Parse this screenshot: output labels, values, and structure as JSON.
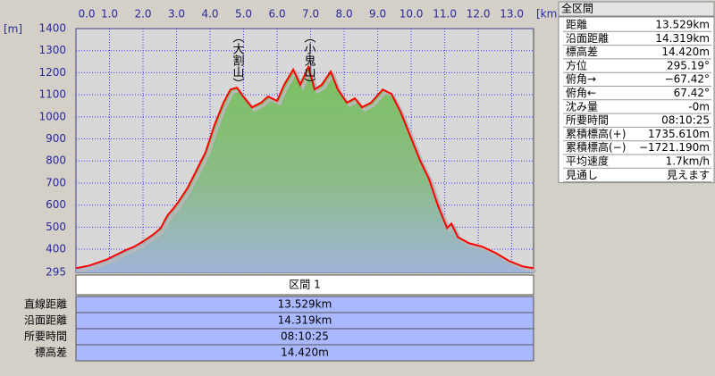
{
  "chart_data": {
    "type": "area",
    "x_unit": "[km]",
    "y_unit": "[m]",
    "x": [
      0,
      0.4,
      0.93,
      1.47,
      1.73,
      2.0,
      2.32,
      2.53,
      2.67,
      2.75,
      2.93,
      3.07,
      3.33,
      3.6,
      3.87,
      4.13,
      4.4,
      4.61,
      4.8,
      4.99,
      5.25,
      5.52,
      5.73,
      6.0,
      6.21,
      6.48,
      6.69,
      6.93,
      7.12,
      7.33,
      7.6,
      7.81,
      8.08,
      8.32,
      8.53,
      8.8,
      9.15,
      9.41,
      9.68,
      9.95,
      10.27,
      10.53,
      10.8,
      11.07,
      11.2,
      11.39,
      11.73,
      12.13,
      12.53,
      12.93,
      13.33,
      13.65
    ],
    "values": [
      314,
      326,
      354,
      395,
      411,
      435,
      468,
      496,
      537,
      557,
      589,
      618,
      678,
      759,
      841,
      962,
      1064,
      1124,
      1132,
      1092,
      1043,
      1064,
      1092,
      1072,
      1145,
      1214,
      1145,
      1226,
      1124,
      1145,
      1205,
      1124,
      1064,
      1084,
      1043,
      1064,
      1124,
      1104,
      1023,
      922,
      800,
      719,
      597,
      496,
      516,
      455,
      427,
      411,
      382,
      346,
      322,
      314
    ],
    "color": "#ff0000",
    "xlim": [
      0,
      13.65
    ],
    "ylim": [
      295,
      1400
    ],
    "xticks": [
      {
        "value": 0,
        "label": "0.0"
      },
      {
        "value": 1,
        "label": "1.0"
      },
      {
        "value": 2,
        "label": "2.0"
      },
      {
        "value": 3,
        "label": "3.0"
      },
      {
        "value": 4,
        "label": "4.0"
      },
      {
        "value": 5,
        "label": "5.0"
      },
      {
        "value": 6,
        "label": "6.0"
      },
      {
        "value": 7,
        "label": "7.0"
      },
      {
        "value": 8,
        "label": "8.0"
      },
      {
        "value": 9,
        "label": "9.0"
      },
      {
        "value": 10,
        "label": "10.0"
      },
      {
        "value": 11,
        "label": "11.0"
      },
      {
        "value": 12,
        "label": "12.0"
      },
      {
        "value": 13,
        "label": "13.0"
      }
    ],
    "yticks": [
      295,
      400,
      500,
      600,
      700,
      800,
      900,
      1000,
      1100,
      1200,
      1300,
      1400
    ],
    "grid": true,
    "annotations": [
      {
        "text": "（大割山）",
        "x": 4.8
      },
      {
        "text": "（小鬼山）",
        "x": 6.93
      }
    ]
  },
  "section_table": {
    "header": "区間 1",
    "rows": [
      [
        "直線距離",
        "13.529km"
      ],
      [
        "沿面距離",
        "14.319km"
      ],
      [
        "所要時間",
        "08:10:25"
      ],
      [
        "標高差",
        "14.420m"
      ]
    ]
  },
  "summary_panel": {
    "title": "全区間",
    "rows": [
      [
        "距離",
        "13.529km"
      ],
      [
        "沿面距離",
        "14.319km"
      ],
      [
        "標高差",
        "14.420m"
      ],
      [
        "方位",
        "295.19°"
      ],
      [
        "俯角→",
        "−67.42°"
      ],
      [
        "俯角←",
        "67.42°"
      ],
      [
        "沈み量",
        "-0m"
      ],
      [
        "所要時間",
        "08:10:25"
      ],
      [
        "累積標高(+)",
        "1735.610m"
      ],
      [
        "累積標高(−)",
        "−1721.190m"
      ],
      [
        "平均速度",
        "1.7km/h"
      ],
      [
        "見通し",
        "見えます"
      ]
    ]
  }
}
